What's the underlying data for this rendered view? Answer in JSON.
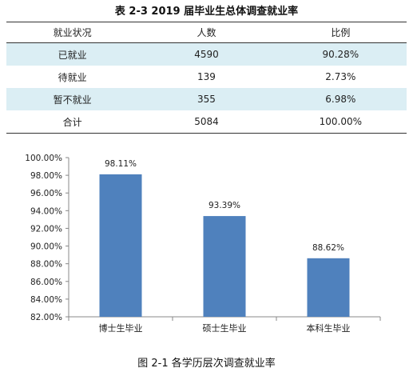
{
  "table": {
    "title": "表 2-3  2019 届毕业生总体调查就业率",
    "headers": [
      "就业状况",
      "人数",
      "比例"
    ],
    "rows": [
      [
        "已就业",
        "4590",
        "90.28%"
      ],
      [
        "待就业",
        "139",
        "2.73%"
      ],
      [
        "暂不就业",
        "355",
        "6.98%"
      ],
      [
        "合计",
        "5084",
        "100.00%"
      ]
    ]
  },
  "chart_data": {
    "type": "bar",
    "categories": [
      "博士生毕业",
      "硕士生毕业",
      "本科生毕业"
    ],
    "values": [
      98.11,
      93.39,
      88.62
    ],
    "data_labels": [
      "98.11%",
      "93.39%",
      "88.62%"
    ],
    "ylim": [
      82,
      100
    ],
    "yticks": [
      "82.00%",
      "84.00%",
      "86.00%",
      "88.00%",
      "90.00%",
      "92.00%",
      "94.00%",
      "96.00%",
      "98.00%",
      "100.00%"
    ],
    "bar_color": "#4f81bd",
    "grid": false
  },
  "caption": "图 2-1  各学历层次调查就业率"
}
